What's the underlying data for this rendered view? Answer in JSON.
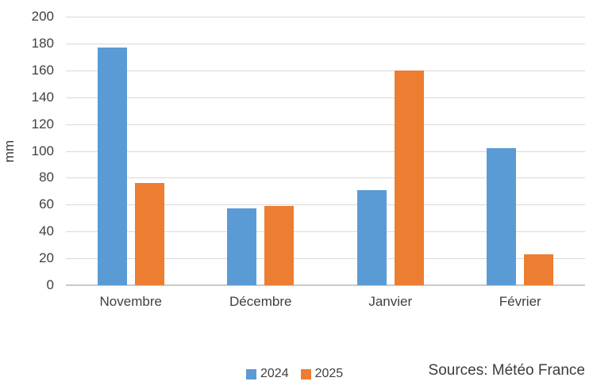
{
  "chart_data": {
    "type": "bar",
    "title": "",
    "xlabel": "",
    "ylabel": "mm",
    "categories": [
      "Novembre",
      "Décembre",
      "Janvier",
      "Février"
    ],
    "series": [
      {
        "name": "2024",
        "color": "#5b9bd5",
        "values": [
          177,
          57,
          71,
          102
        ]
      },
      {
        "name": "2025",
        "color": "#ed7d31",
        "values": [
          76,
          59,
          160,
          23
        ]
      }
    ],
    "ylim": [
      0,
      200
    ],
    "ytick_step": 20,
    "yticks": [
      0,
      20,
      40,
      60,
      80,
      100,
      120,
      140,
      160,
      180,
      200
    ],
    "grid": true,
    "legend_position": "bottom"
  },
  "source_note": "Sources: Météo France"
}
